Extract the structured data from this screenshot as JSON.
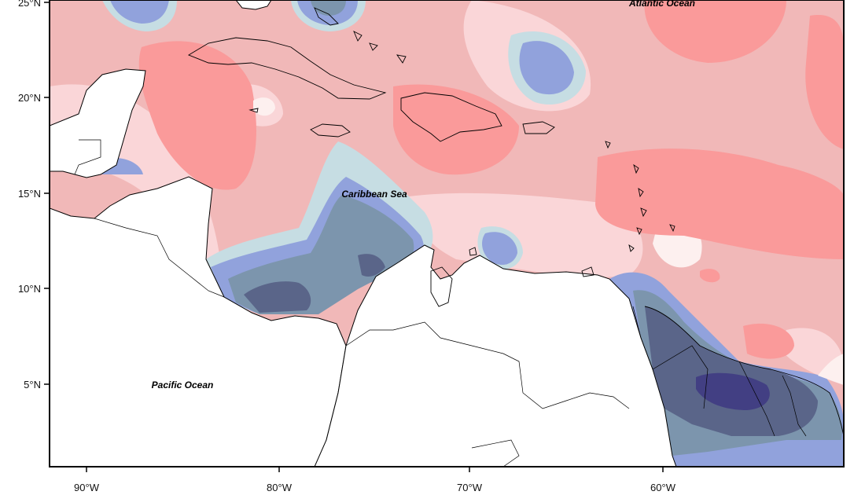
{
  "map": {
    "lat_labels": [
      "25°N",
      "20°N",
      "15°N",
      "10°N",
      "5°N"
    ],
    "lon_labels": [
      "90°W",
      "80°W",
      "70°W",
      "60°W"
    ],
    "place_labels": {
      "atlantic": "Atlantic Ocean",
      "caribbean": "Caribbean Sea",
      "pacific": "Pacific Ocean"
    },
    "colors": {
      "red_strong": "#fa9a9a",
      "red_mid": "#f1b8b8",
      "red_light": "#fad6d8",
      "neutral": "#fdf0ef",
      "blue_pale": "#c6dde3",
      "blue_light": "#91a2dc",
      "blue_mid": "#7c95ad",
      "blue_dark": "#5a6589",
      "blue_darkest": "#423f83",
      "land": "#ffffff"
    }
  }
}
